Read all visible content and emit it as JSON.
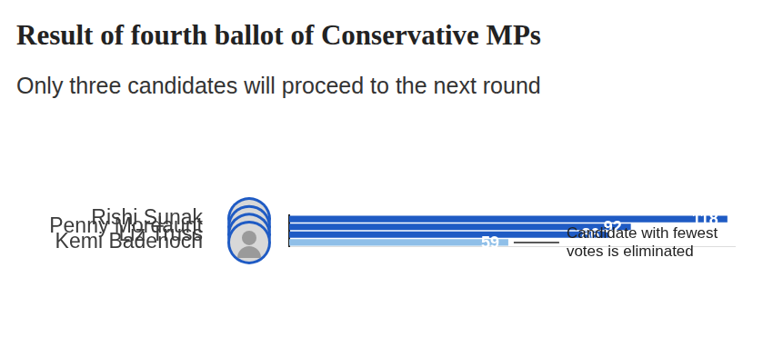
{
  "chart_data": {
    "type": "bar",
    "orientation": "horizontal",
    "title": "Result of fourth ballot of Conservative MPs",
    "subtitle": "Only three candidates will proceed to the next round",
    "categories": [
      "Rishi Sunak",
      "Penny Mordaunt",
      "Liz Truss",
      "Kemi Badenoch"
    ],
    "values": [
      118,
      92,
      86,
      59
    ],
    "colors": [
      "#1f5bc4",
      "#1f5bc4",
      "#1f5bc4",
      "#8fbfe8"
    ],
    "xlim": [
      0,
      120
    ],
    "grid": false,
    "data_labels": true,
    "tick_labels": "y",
    "annotation": {
      "category": "Kemi Badenoch",
      "text": [
        "Candidate with fewest",
        "votes is eliminated"
      ]
    }
  }
}
